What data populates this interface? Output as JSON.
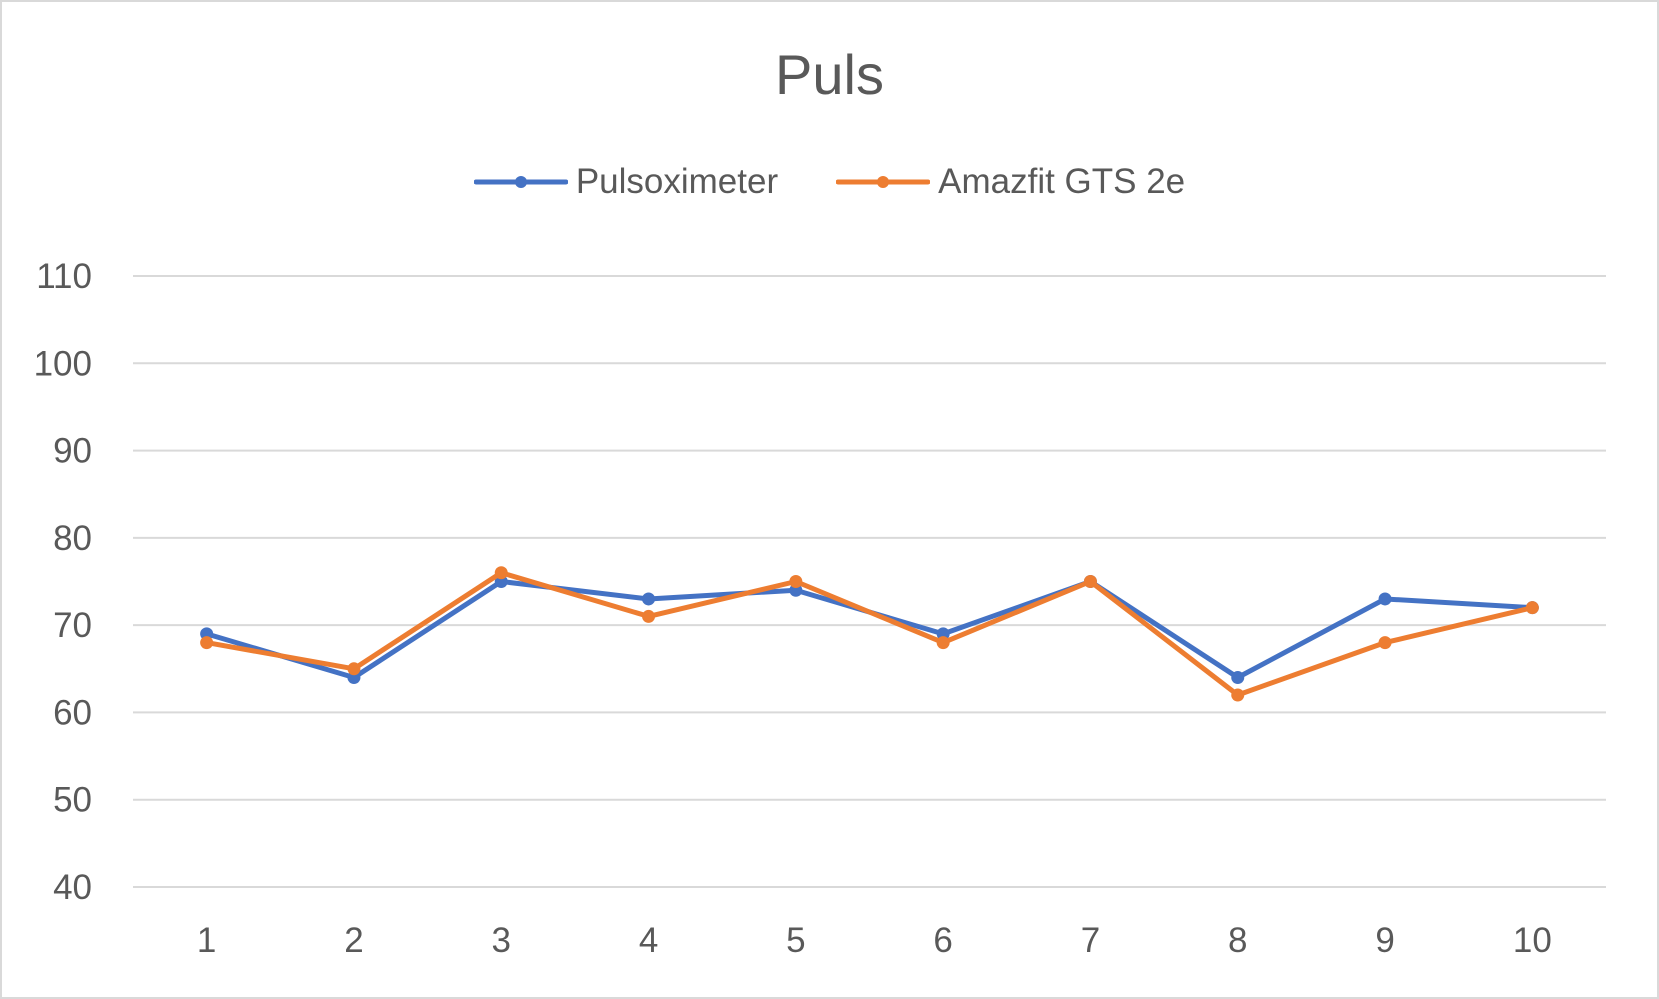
{
  "chart_data": {
    "type": "line",
    "title": "Puls",
    "xlabel": "",
    "ylabel": "",
    "categories": [
      "1",
      "2",
      "3",
      "4",
      "5",
      "6",
      "7",
      "8",
      "9",
      "10"
    ],
    "ylim": [
      40,
      110
    ],
    "yticks": [
      "40",
      "50",
      "60",
      "70",
      "80",
      "90",
      "100",
      "110"
    ],
    "grid": true,
    "legend_position": "top",
    "series": [
      {
        "name": "Pulsoximeter",
        "color": "#4472c4",
        "values": [
          69,
          64,
          75,
          73,
          74,
          69,
          75,
          64,
          73,
          72
        ]
      },
      {
        "name": "Amazfit GTS 2e",
        "color": "#ed7d31",
        "values": [
          68,
          65,
          76,
          71,
          75,
          68,
          75,
          62,
          68,
          72
        ]
      }
    ]
  }
}
